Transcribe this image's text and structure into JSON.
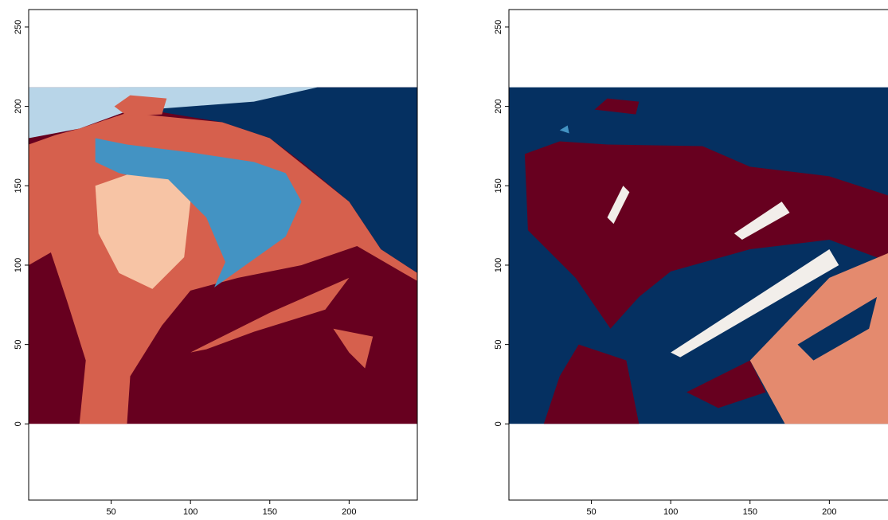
{
  "chart_data": [
    {
      "type": "image",
      "xlim": [
        -2,
        243
      ],
      "ylim": [
        -48,
        261
      ],
      "xticks": [
        50,
        100,
        150,
        200
      ],
      "yticks": [
        0,
        50,
        100,
        150,
        200,
        250
      ],
      "colors": [
        "#67001F",
        "#D6604D",
        "#F7C4A5",
        "#4393C3",
        "#B8D5E8",
        "#053061"
      ]
    },
    {
      "type": "image",
      "xlim": [
        -2,
        243
      ],
      "ylim": [
        -48,
        261
      ],
      "xticks": [
        50,
        100,
        150,
        200
      ],
      "yticks": [
        0,
        50,
        100,
        150,
        200,
        250
      ],
      "colors": [
        "#053061",
        "#67001F",
        "#E48A6E",
        "#4393C3",
        "#F2EEEA"
      ]
    }
  ]
}
